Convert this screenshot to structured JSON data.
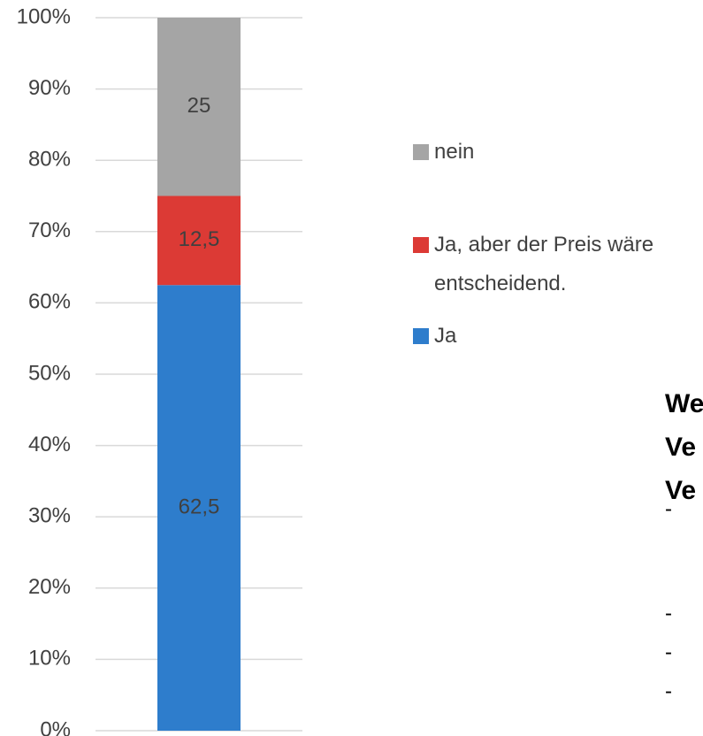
{
  "chart_data": {
    "type": "stacked_bar",
    "categories": [
      null
    ],
    "series": [
      {
        "name": "Ja",
        "color": "#2e7dcc",
        "values": [
          62.5
        ],
        "value_labels": [
          "62,5"
        ]
      },
      {
        "name": "Ja, aber der Preis wäre entscheidend.",
        "color": "#dc3a35",
        "values": [
          12.5
        ],
        "value_labels": [
          "12,5"
        ]
      },
      {
        "name": "nein",
        "color": "#a5a5a5",
        "values": [
          25
        ],
        "value_labels": [
          "25"
        ]
      }
    ],
    "ylim": [
      0,
      100
    ],
    "yticks": [
      {
        "value": 0,
        "label": "0%"
      },
      {
        "value": 10,
        "label": "10%"
      },
      {
        "value": 20,
        "label": "20%"
      },
      {
        "value": 30,
        "label": "30%"
      },
      {
        "value": 40,
        "label": "40%"
      },
      {
        "value": 50,
        "label": "50%"
      },
      {
        "value": 60,
        "label": "60%"
      },
      {
        "value": 70,
        "label": "70%"
      },
      {
        "value": 80,
        "label": "80%"
      },
      {
        "value": 90,
        "label": "90%"
      },
      {
        "value": 100,
        "label": "100%"
      }
    ],
    "grid": true,
    "legend": "right"
  },
  "side_text": {
    "heading": [
      "We",
      "Ve",
      "Ve"
    ],
    "bullets": [
      "-",
      "-",
      "-",
      "-"
    ]
  }
}
